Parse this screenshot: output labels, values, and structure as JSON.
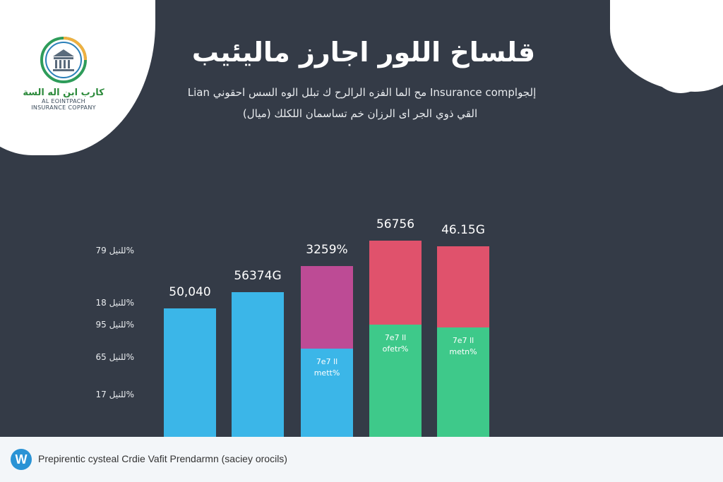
{
  "header": {
    "logo": {
      "arabic_name": "كارب ابن اله السة",
      "english_line1": "AL EOINTPACH",
      "english_line2": "INSURANCE COPPANY",
      "icon": "building-columns-icon",
      "ring_color": "#2e9c5a"
    },
    "title": "قلساخ اللور اجارز ماليئيب",
    "subtitle_line1": "Lian مح الما الفزه الرالرح ك تبلل الوه السس احقوني Insurance complإلجو",
    "subtitle_line2": "(ميال) القي ذوي الجر اى الرزان خم تساسمان اللكلك"
  },
  "colors": {
    "background": "#343b47",
    "blue": "#3bb6e8",
    "magenta": "#bd4b95",
    "red": "#e0526c",
    "green": "#3ec98a"
  },
  "chart_data": {
    "type": "bar",
    "stacked": true,
    "y_tick_labels": [
      "للنيل 79%",
      "للنيل 18%",
      "للنيل 95%",
      "للنيل 65%",
      "للنيل 17%"
    ],
    "bars": [
      {
        "top_label": "50,040",
        "segments": [
          {
            "color": "#3bb6e8",
            "value": 183
          }
        ]
      },
      {
        "top_label": "56374G",
        "segments": [
          {
            "color": "#3bb6e8",
            "value": 206
          }
        ]
      },
      {
        "top_label": "3259%",
        "segments": [
          {
            "color": "#3bb6e8",
            "value": 126,
            "label_line1": "7e7 ll",
            "label_line2": "mett%"
          },
          {
            "color": "#bd4b95",
            "value": 117
          }
        ]
      },
      {
        "top_label": "56756",
        "segments": [
          {
            "color": "#3ec98a",
            "value": 160,
            "label_line1": "7e7 ll",
            "label_line2": "ofetr%"
          },
          {
            "color": "#e0526c",
            "value": 119
          }
        ]
      },
      {
        "top_label": "46.15G",
        "segments": [
          {
            "color": "#3ec98a",
            "value": 156,
            "label_line1": "7e7 ll",
            "label_line2": "metn%"
          },
          {
            "color": "#e0526c",
            "value": 115
          }
        ]
      }
    ]
  },
  "footer": {
    "badge": "W",
    "text": "Prepirentic cysteal Crdie Vafit Prendarmn (saciey orocils)"
  }
}
